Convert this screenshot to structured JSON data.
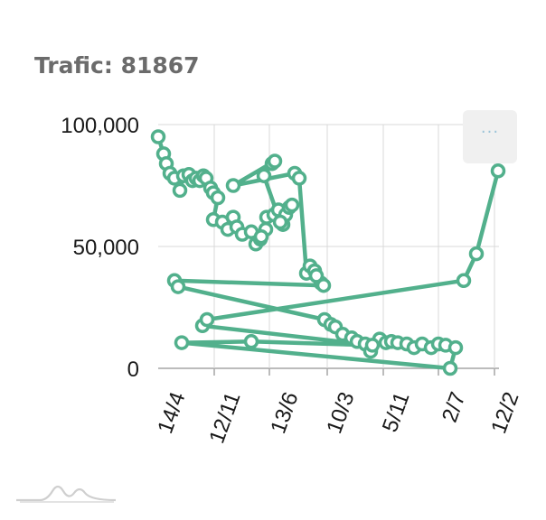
{
  "header": {
    "title_prefix": "Trafic:",
    "title_value": "81867"
  },
  "menu": {
    "icon": "ellipsis-icon",
    "glyph": "···"
  },
  "logo": {
    "icon": "mountain-logo-icon"
  },
  "colors": {
    "series": "#52b08c",
    "grid": "#d9d9d9",
    "axis": "#a6a6a6",
    "text": "#1a1a1a"
  },
  "chart_data": {
    "type": "line",
    "title": "",
    "xlabel": "",
    "ylabel": "",
    "ylim": [
      0,
      100000
    ],
    "y_ticks": [
      0,
      50000,
      100000
    ],
    "y_tick_labels": [
      "0",
      "50,000",
      "100,000"
    ],
    "x_tick_labels": [
      "14/4",
      "12/11",
      "13/6",
      "10/3",
      "5/11",
      "2/7",
      "12/2"
    ],
    "grid": true,
    "legend": "none",
    "series": [
      {
        "values": [
          [
            175,
            95000
          ],
          [
            181,
            88000
          ],
          [
            184,
            84000
          ],
          [
            188,
            80000
          ],
          [
            193,
            78000
          ],
          [
            199,
            73000
          ],
          [
            203,
            79000
          ],
          [
            209,
            79500
          ],
          [
            213,
            77000
          ],
          [
            217,
            78000
          ],
          [
            221,
            77000
          ],
          [
            225,
            79000
          ],
          [
            228,
            78000
          ],
          [
            233,
            74000
          ],
          [
            236,
            72000
          ],
          [
            241,
            70000
          ],
          [
            236,
            61000
          ],
          [
            246,
            60000
          ],
          [
            252,
            57000
          ],
          [
            258,
            62000
          ],
          [
            262,
            58000
          ],
          [
            268,
            55000
          ],
          [
            278,
            56000
          ],
          [
            283,
            51000
          ],
          [
            288,
            53000
          ],
          [
            294,
            57000
          ],
          [
            289,
            54000
          ],
          [
            295,
            62000
          ],
          [
            303,
            63000
          ],
          [
            308,
            65000
          ],
          [
            313,
            59000
          ],
          [
            316,
            63000
          ],
          [
            320,
            66000
          ],
          [
            323,
            67000
          ],
          [
            310,
            60000
          ],
          [
            292,
            79000
          ],
          [
            301,
            84000
          ],
          [
            304,
            85000
          ],
          [
            258,
            75000
          ],
          [
            326,
            80000
          ],
          [
            331,
            78000
          ],
          [
            339,
            39000
          ],
          [
            343,
            42000
          ],
          [
            348,
            40000
          ],
          [
            355,
            35000
          ],
          [
            350,
            38000
          ],
          [
            358,
            34000
          ],
          [
            193,
            36000
          ],
          [
            197,
            33500
          ],
          [
            359,
            20000
          ],
          [
            366,
            18000
          ],
          [
            371,
            17000
          ],
          [
            379,
            14000
          ],
          [
            389,
            12500
          ],
          [
            395,
            11000
          ],
          [
            404,
            10000
          ],
          [
            410,
            7000
          ],
          [
            420,
            12000
          ],
          [
            427,
            10500
          ],
          [
            433,
            11000
          ],
          [
            440,
            10500
          ],
          [
            450,
            10000
          ],
          [
            458,
            8500
          ],
          [
            467,
            10000
          ],
          [
            477,
            8500
          ],
          [
            485,
            10000
          ],
          [
            493,
            9500
          ],
          [
            504,
            8500
          ],
          [
            498,
            0
          ],
          [
            201,
            10500
          ],
          [
            278,
            11000
          ],
          [
            412,
            9500
          ],
          [
            224,
            17500
          ],
          [
            229,
            20000
          ],
          [
            513,
            36000
          ],
          [
            527,
            47000
          ],
          [
            551,
            81000
          ]
        ]
      }
    ]
  }
}
